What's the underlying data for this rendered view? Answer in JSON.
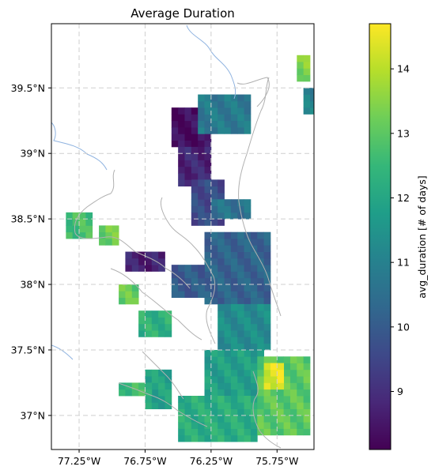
{
  "title": "Average Duration",
  "map": {
    "lon_range": [
      -77.46,
      -75.47
    ],
    "lat_range": [
      36.74,
      39.99
    ],
    "gridlines": true,
    "x_ticks": [
      {
        "value": -77.25,
        "label": "77.25°W"
      },
      {
        "value": -76.75,
        "label": "76.75°W"
      },
      {
        "value": -76.25,
        "label": "76.25°W"
      },
      {
        "value": -75.75,
        "label": "75.75°W"
      }
    ],
    "y_ticks": [
      {
        "value": 39.5,
        "label": "39.5°N"
      },
      {
        "value": 39.0,
        "label": "39°N"
      },
      {
        "value": 38.5,
        "label": "38.5°N"
      },
      {
        "value": 38.0,
        "label": "38°N"
      },
      {
        "value": 37.5,
        "label": "37.5°N"
      },
      {
        "value": 37.0,
        "label": "37°N"
      }
    ]
  },
  "colorbar": {
    "label": "avg_duration [# of days]",
    "range": [
      8.1,
      14.7
    ],
    "ticks": [
      {
        "value": 9,
        "label": "9"
      },
      {
        "value": 10,
        "label": "10"
      },
      {
        "value": 11,
        "label": "11"
      },
      {
        "value": 12,
        "label": "12"
      },
      {
        "value": 13,
        "label": "13"
      },
      {
        "value": 14,
        "label": "14"
      }
    ],
    "colormap": [
      "#440154",
      "#482878",
      "#3e4989",
      "#31688e",
      "#26828e",
      "#1f9e89",
      "#35b779",
      "#6ece58",
      "#b5de2b",
      "#fde725"
    ]
  },
  "colors": {
    "river": "#8fb3e0",
    "coastline": "#b0b0b0",
    "grid": "#cfcfcf"
  },
  "chart_data": {
    "type": "heatmap",
    "title": "Average Duration",
    "xlabel": "",
    "ylabel": "",
    "cell_size_deg": 0.05,
    "value_label": "avg_duration [# of days]",
    "value_range": [
      8.1,
      14.7
    ],
    "regions": [
      {
        "lon": [
          -76.55,
          -76.25
        ],
        "lat": [
          39.05,
          39.35
        ],
        "value": 8.3
      },
      {
        "lon": [
          -76.5,
          -76.25
        ],
        "lat": [
          38.75,
          39.05
        ],
        "value": 8.8
      },
      {
        "lon": [
          -76.35,
          -75.95
        ],
        "lat": [
          39.15,
          39.45
        ],
        "value": 10.8
      },
      {
        "lon": [
          -76.4,
          -76.15
        ],
        "lat": [
          38.45,
          38.8
        ],
        "value": 9.6
      },
      {
        "lon": [
          -76.25,
          -75.95
        ],
        "lat": [
          38.5,
          38.65
        ],
        "value": 10.6
      },
      {
        "lon": [
          -76.9,
          -76.6
        ],
        "lat": [
          38.1,
          38.25
        ],
        "value": 8.7
      },
      {
        "lon": [
          -76.3,
          -75.8
        ],
        "lat": [
          37.85,
          38.4
        ],
        "value": 10.2
      },
      {
        "lon": [
          -76.55,
          -76.3
        ],
        "lat": [
          37.9,
          38.15
        ],
        "value": 10.0
      },
      {
        "lon": [
          -76.2,
          -75.8
        ],
        "lat": [
          37.5,
          37.85
        ],
        "value": 11.3
      },
      {
        "lon": [
          -76.3,
          -75.85
        ],
        "lat": [
          37.15,
          37.5
        ],
        "value": 11.8
      },
      {
        "lon": [
          -76.5,
          -75.9
        ],
        "lat": [
          36.8,
          37.15
        ],
        "value": 12.2
      },
      {
        "lon": [
          -75.9,
          -75.5
        ],
        "lat": [
          36.85,
          37.45
        ],
        "value": 13.0
      },
      {
        "lon": [
          -75.85,
          -75.7
        ],
        "lat": [
          37.2,
          37.4
        ],
        "value": 14.4
      },
      {
        "lon": [
          -77.35,
          -77.15
        ],
        "lat": [
          38.35,
          38.55
        ],
        "value": 12.7
      },
      {
        "lon": [
          -77.1,
          -76.95
        ],
        "lat": [
          38.3,
          38.45
        ],
        "value": 13.2
      },
      {
        "lon": [
          -76.95,
          -76.8
        ],
        "lat": [
          37.85,
          38.0
        ],
        "value": 13.1
      },
      {
        "lon": [
          -76.8,
          -76.55
        ],
        "lat": [
          37.6,
          37.8
        ],
        "value": 12.3
      },
      {
        "lon": [
          -76.75,
          -76.55
        ],
        "lat": [
          37.05,
          37.35
        ],
        "value": 11.9
      },
      {
        "lon": [
          -76.95,
          -76.7
        ],
        "lat": [
          37.15,
          37.25
        ],
        "value": 12.6
      },
      {
        "lon": [
          -75.6,
          -75.5
        ],
        "lat": [
          39.55,
          39.75
        ],
        "value": 13.4
      },
      {
        "lon": [
          -75.55,
          -75.45
        ],
        "lat": [
          39.3,
          39.5
        ],
        "value": 11.0
      }
    ]
  }
}
